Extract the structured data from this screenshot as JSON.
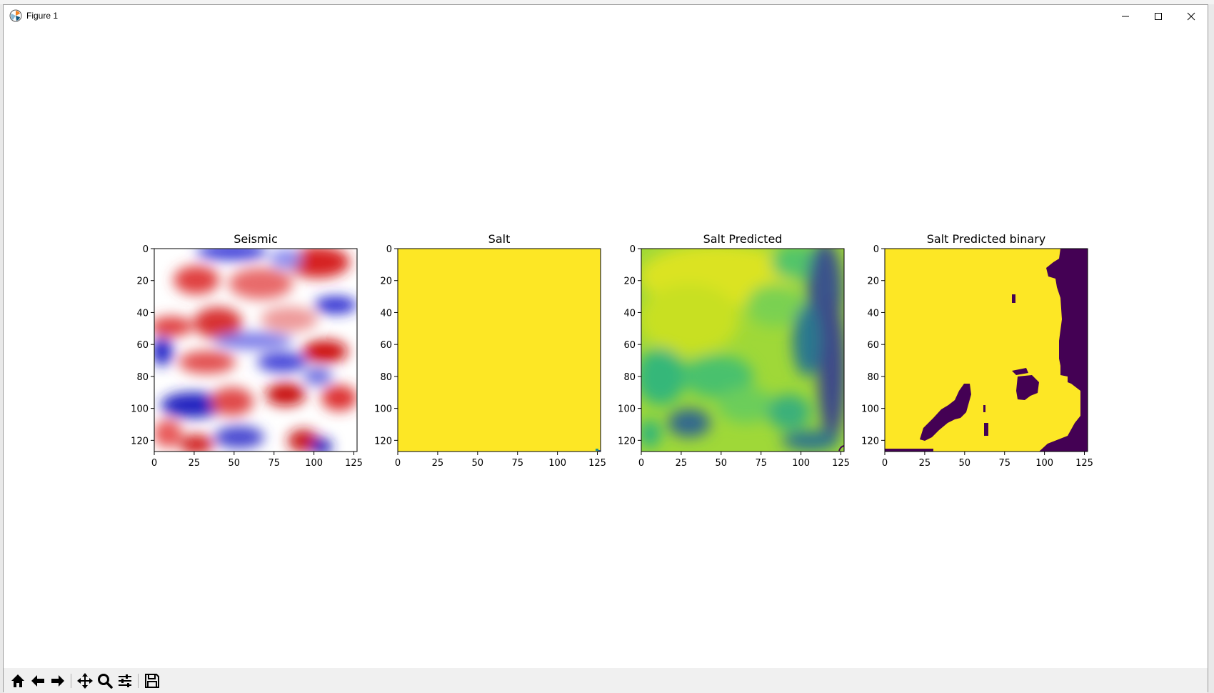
{
  "window": {
    "title": "Figure 1"
  },
  "toolbar": {
    "buttons": [
      {
        "name": "home-button",
        "icon": "home-icon"
      },
      {
        "name": "back-button",
        "icon": "arrow-left-icon"
      },
      {
        "name": "forward-button",
        "icon": "arrow-right-icon"
      },
      {
        "name": "pan-button",
        "icon": "move-icon"
      },
      {
        "name": "zoom-button",
        "icon": "magnifier-icon"
      },
      {
        "name": "configure-subplots-button",
        "icon": "sliders-icon"
      },
      {
        "name": "save-button",
        "icon": "floppy-disk-icon"
      }
    ]
  },
  "chart_data": [
    {
      "type": "heatmap",
      "title": "Seismic",
      "colormap": "seismic",
      "xticks": [
        "0",
        "25",
        "50",
        "75",
        "100",
        "125"
      ],
      "yticks": [
        "0",
        "20",
        "40",
        "60",
        "80",
        "100",
        "120"
      ],
      "xlim": [
        0,
        127
      ],
      "ylim": [
        127,
        0
      ]
    },
    {
      "type": "heatmap",
      "title": "Salt",
      "colormap": "viridis",
      "xticks": [
        "0",
        "25",
        "50",
        "75",
        "100",
        "125"
      ],
      "yticks": [
        "0",
        "20",
        "40",
        "60",
        "80",
        "100",
        "120"
      ],
      "xlim": [
        0,
        127
      ],
      "ylim": [
        127,
        0
      ]
    },
    {
      "type": "heatmap",
      "title": "Salt Predicted",
      "colormap": "viridis",
      "xticks": [
        "0",
        "25",
        "50",
        "75",
        "100",
        "125"
      ],
      "yticks": [
        "0",
        "20",
        "40",
        "60",
        "80",
        "100",
        "120"
      ],
      "xlim": [
        0,
        127
      ],
      "ylim": [
        127,
        0
      ]
    },
    {
      "type": "heatmap",
      "title": "Salt Predicted binary",
      "colormap": "viridis",
      "xticks": [
        "0",
        "25",
        "50",
        "75",
        "100",
        "125"
      ],
      "yticks": [
        "0",
        "20",
        "40",
        "60",
        "80",
        "100",
        "120"
      ],
      "xlim": [
        0,
        127
      ],
      "ylim": [
        127,
        0
      ]
    }
  ]
}
